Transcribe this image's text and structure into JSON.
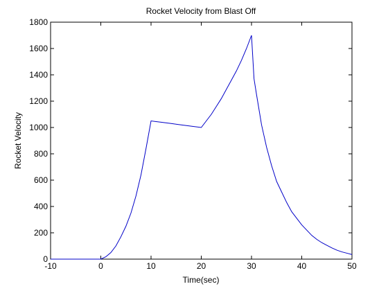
{
  "chart_data": {
    "type": "line",
    "title": "Rocket Velocity from Blast Off",
    "xlabel": "Time(sec)",
    "ylabel": "Rocket Velocity",
    "xlim": [
      -10,
      50
    ],
    "ylim": [
      0,
      1800
    ],
    "xticks": [
      -10,
      0,
      10,
      20,
      30,
      40,
      50
    ],
    "yticks": [
      0,
      200,
      400,
      600,
      800,
      1000,
      1200,
      1400,
      1600,
      1800
    ],
    "xtick_labels": [
      "-10",
      "0",
      "10",
      "20",
      "30",
      "40",
      "50"
    ],
    "ytick_labels": [
      "0",
      "200",
      "400",
      "600",
      "800",
      "1000",
      "1200",
      "1400",
      "1600",
      "1800"
    ],
    "grid": false,
    "legend": false,
    "series": [
      {
        "color": "#0000c8",
        "x": [
          -10,
          -8,
          -6,
          -4,
          -2,
          -0.1,
          0,
          1,
          2,
          3,
          4,
          5,
          6,
          7,
          8,
          9,
          10,
          11,
          12,
          14,
          16,
          18,
          20,
          21,
          22,
          23,
          24,
          25,
          26,
          27,
          28,
          29,
          30,
          30.5,
          31,
          32,
          33,
          34,
          35,
          36,
          37,
          38,
          39,
          40,
          41,
          42,
          43,
          44,
          45,
          46,
          47,
          48,
          49,
          50
        ],
        "y": [
          0,
          0,
          0,
          0,
          0,
          0,
          0,
          18,
          50,
          100,
          170,
          250,
          350,
          480,
          640,
          840,
          1050,
          1045,
          1040,
          1030,
          1020,
          1010,
          1000,
          1050,
          1100,
          1160,
          1220,
          1290,
          1360,
          1430,
          1510,
          1600,
          1700,
          1370,
          1250,
          1020,
          850,
          710,
          590,
          510,
          430,
          360,
          310,
          260,
          220,
          180,
          150,
          125,
          105,
          85,
          68,
          55,
          45,
          35
        ]
      }
    ]
  }
}
